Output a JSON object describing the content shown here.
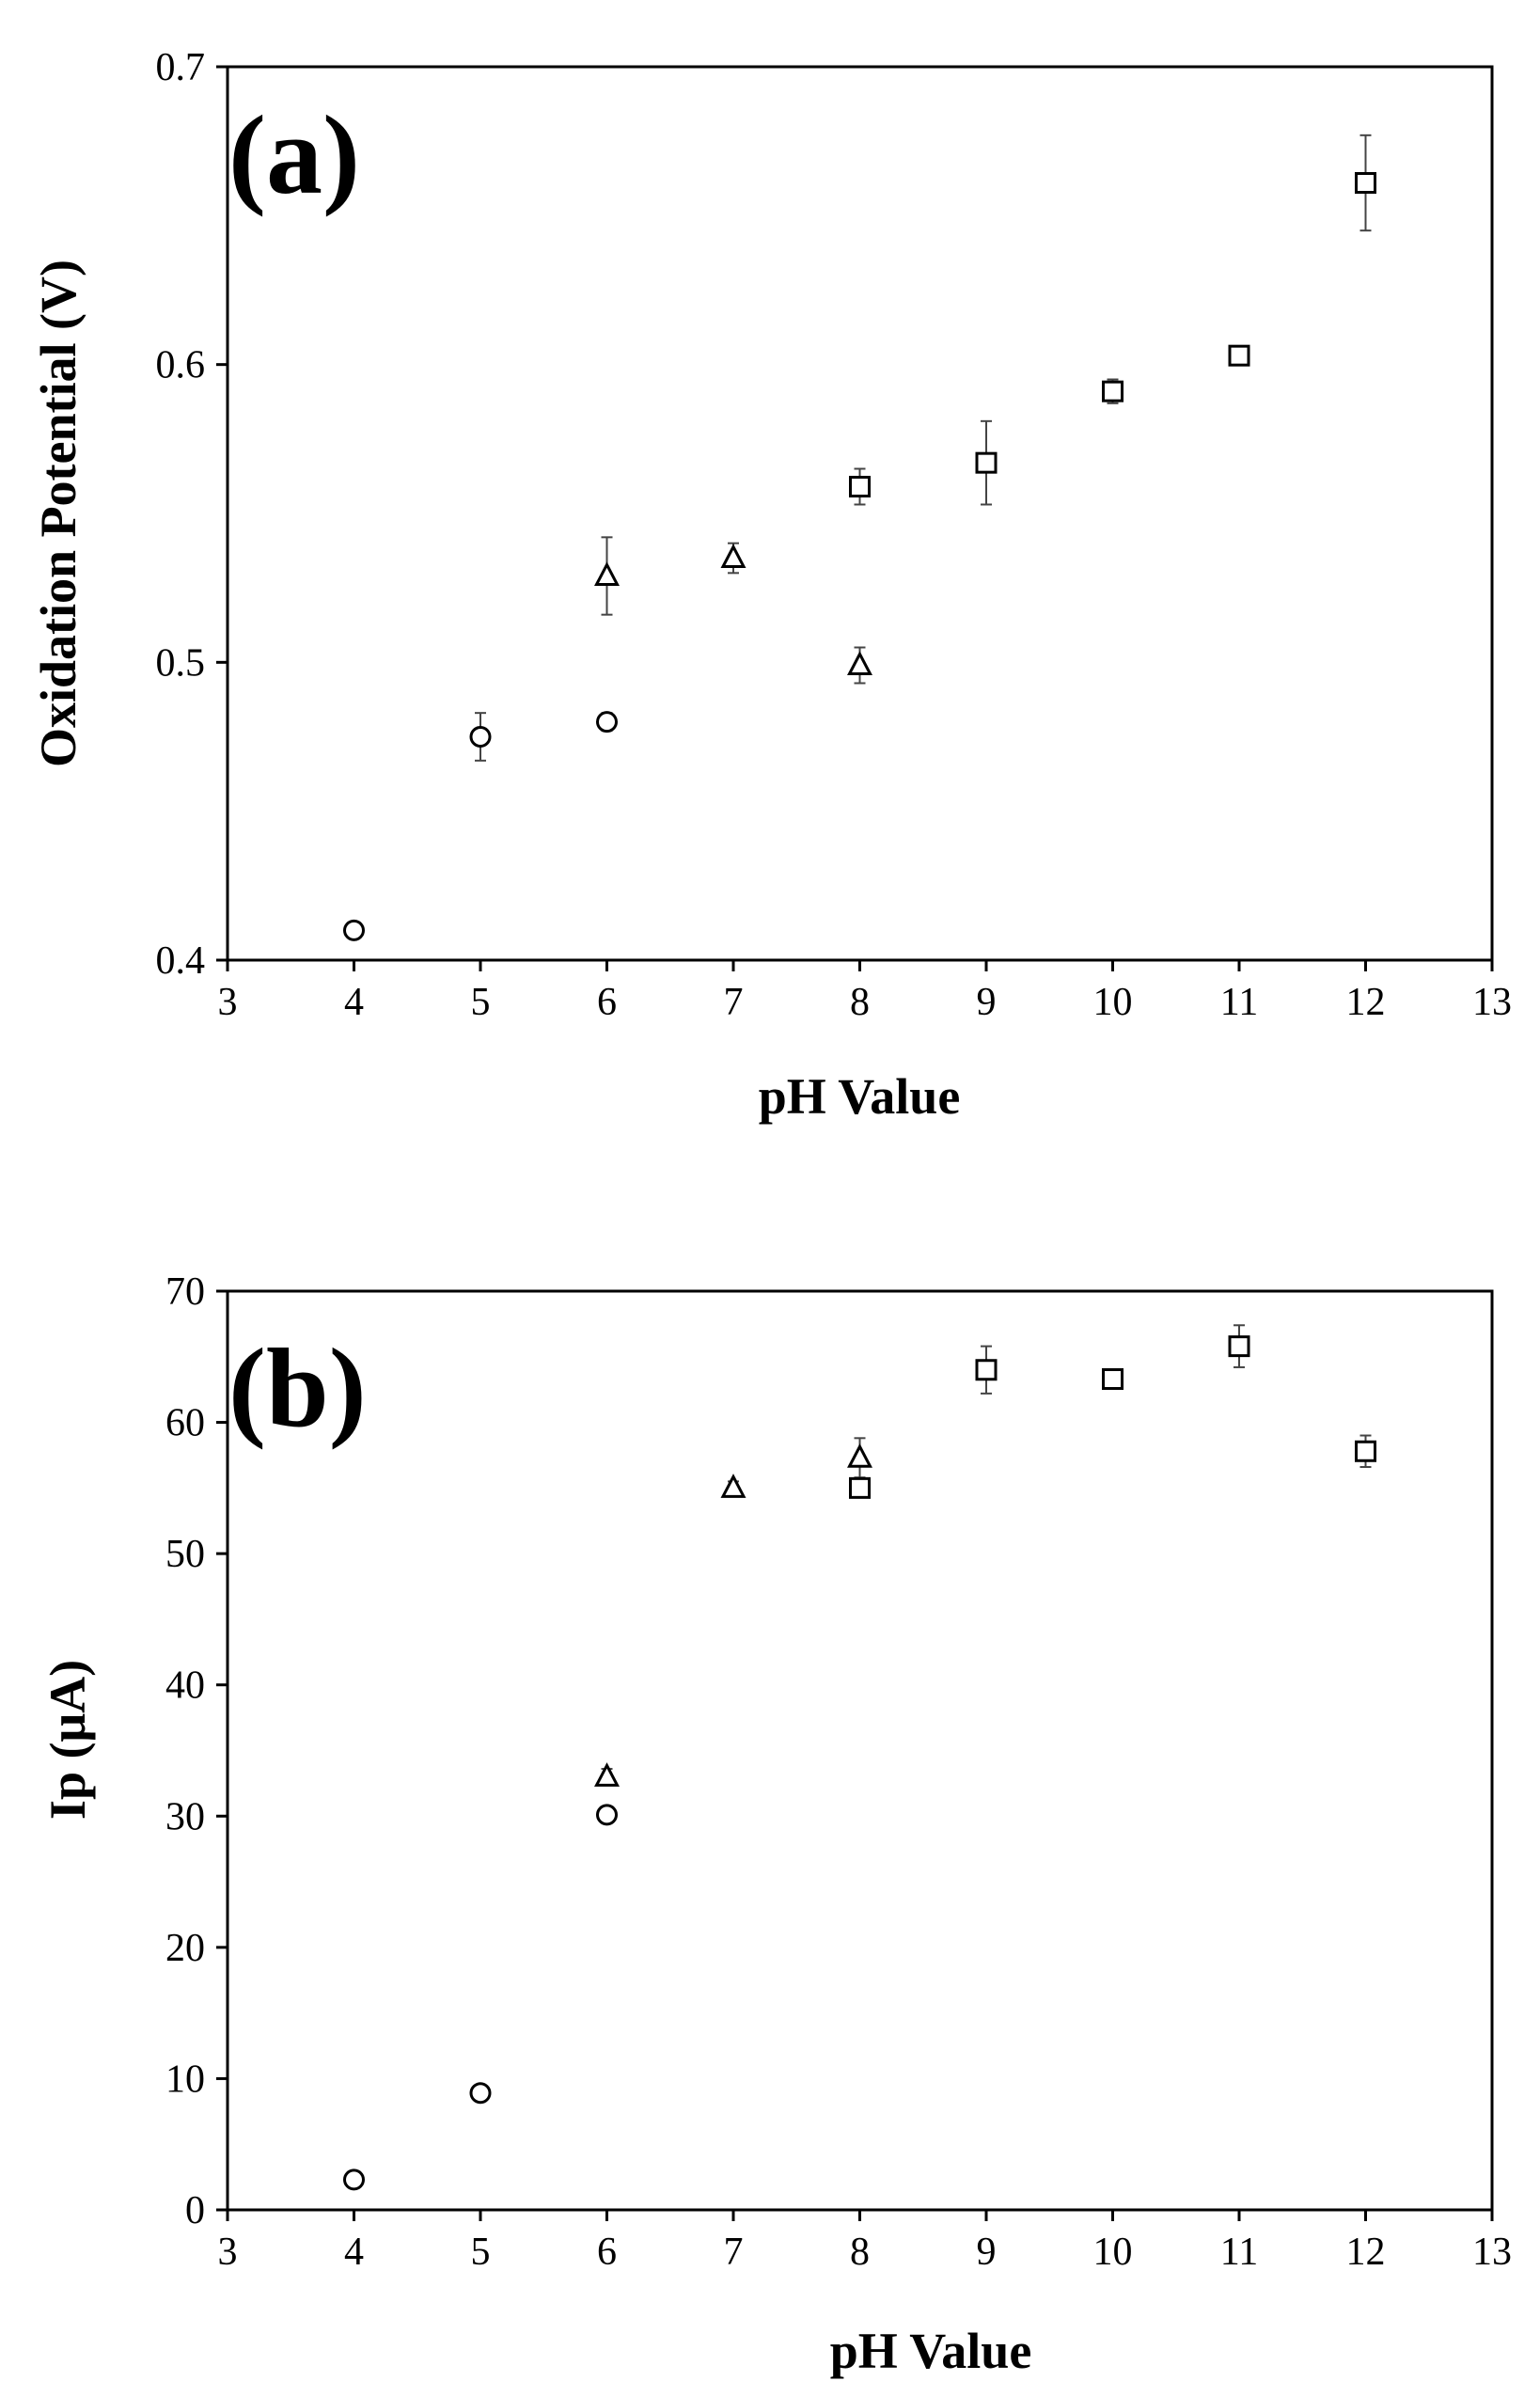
{
  "chart_data": [
    {
      "id": "a",
      "type": "scatter",
      "panel_label": "(a)",
      "xlabel": "pH Value",
      "ylabel": "Oxidation Potential (V)",
      "xlim": [
        3,
        13
      ],
      "ylim": [
        0.4,
        0.7
      ],
      "xticks": [
        3,
        4,
        5,
        6,
        7,
        8,
        9,
        10,
        11,
        12,
        13
      ],
      "yticks": [
        0.4,
        0.5,
        0.6,
        0.7
      ],
      "xtick_labels": [
        "3",
        "4",
        "5",
        "6",
        "7",
        "8",
        "9",
        "10",
        "11",
        "12",
        "13"
      ],
      "ytick_labels": [
        "0.4",
        "0.5",
        "0.6",
        "0.7"
      ],
      "series": [
        {
          "name": "circle",
          "marker": "circle",
          "points": [
            {
              "x": 4,
              "y": 0.41,
              "err": 0.002
            },
            {
              "x": 5,
              "y": 0.475,
              "err": 0.008
            },
            {
              "x": 6,
              "y": 0.48,
              "err": 0.003
            }
          ]
        },
        {
          "name": "triangle",
          "marker": "triangle",
          "points": [
            {
              "x": 6,
              "y": 0.529,
              "err": 0.013
            },
            {
              "x": 7,
              "y": 0.535,
              "err": 0.005
            },
            {
              "x": 8,
              "y": 0.499,
              "err": 0.006
            }
          ]
        },
        {
          "name": "square",
          "marker": "square",
          "points": [
            {
              "x": 8,
              "y": 0.559,
              "err": 0.006
            },
            {
              "x": 9,
              "y": 0.567,
              "err": 0.014
            },
            {
              "x": 10,
              "y": 0.591,
              "err": 0.004
            },
            {
              "x": 11,
              "y": 0.603,
              "err": 0.003
            },
            {
              "x": 12,
              "y": 0.661,
              "err": 0.016
            }
          ]
        }
      ]
    },
    {
      "id": "b",
      "type": "scatter",
      "panel_label": "(b)",
      "xlabel": "pH Value",
      "ylabel": "Ip (μA)",
      "xlim": [
        3,
        13
      ],
      "ylim": [
        0,
        70
      ],
      "xticks": [
        3,
        4,
        5,
        6,
        7,
        8,
        9,
        10,
        11,
        12,
        13
      ],
      "yticks": [
        0,
        10,
        20,
        30,
        40,
        50,
        60,
        70
      ],
      "xtick_labels": [
        "3",
        "4",
        "5",
        "6",
        "7",
        "8",
        "9",
        "10",
        "11",
        "12",
        "13"
      ],
      "ytick_labels": [
        "0",
        "10",
        "20",
        "30",
        "40",
        "50",
        "60",
        "70"
      ],
      "series": [
        {
          "name": "circle",
          "marker": "circle",
          "points": [
            {
              "x": 4,
              "y": 2.3,
              "err": 0.4
            },
            {
              "x": 5,
              "y": 8.9,
              "err": 0.4
            },
            {
              "x": 6,
              "y": 30.1,
              "err": 0.5
            }
          ]
        },
        {
          "name": "triangle",
          "marker": "triangle",
          "points": [
            {
              "x": 6,
              "y": 33.0,
              "err": 0.6
            },
            {
              "x": 7,
              "y": 55.0,
              "err": 0.5
            },
            {
              "x": 8,
              "y": 57.3,
              "err": 1.5
            }
          ]
        },
        {
          "name": "square",
          "marker": "square",
          "points": [
            {
              "x": 8,
              "y": 55.0,
              "err": 0.5
            },
            {
              "x": 9,
              "y": 64.0,
              "err": 1.8
            },
            {
              "x": 10,
              "y": 63.3,
              "err": 0.5
            },
            {
              "x": 11,
              "y": 65.8,
              "err": 1.6
            },
            {
              "x": 12,
              "y": 57.8,
              "err": 1.2
            }
          ]
        }
      ]
    }
  ]
}
